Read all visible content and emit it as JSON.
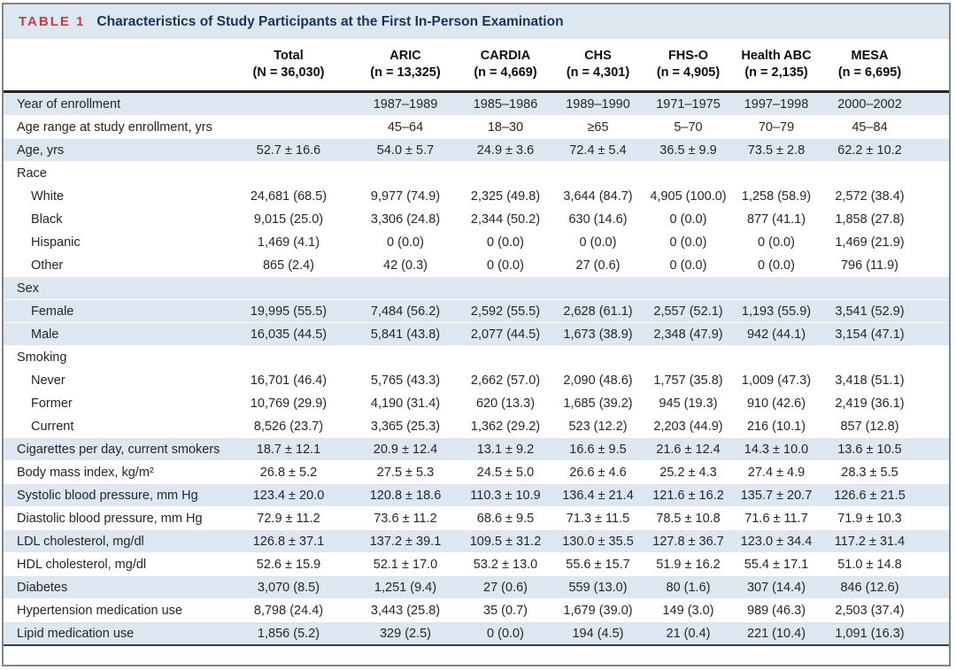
{
  "title": {
    "tag": "TABLE 1",
    "text": "Characteristics of Study Participants at the First In-Person Examination"
  },
  "columns": [
    {
      "name": "Total",
      "n": "(N = 36,030)"
    },
    {
      "name": "ARIC",
      "n": "(n = 13,325)"
    },
    {
      "name": "CARDIA",
      "n": "(n = 4,669)"
    },
    {
      "name": "CHS",
      "n": "(n = 4,301)"
    },
    {
      "name": "FHS-O",
      "n": "(n = 4,905)"
    },
    {
      "name": "Health ABC",
      "n": "(n = 2,135)"
    },
    {
      "name": "MESA",
      "n": "(n = 6,695)"
    }
  ],
  "rows": [
    {
      "label": "Year of enrollment",
      "indent": false,
      "shaded": true,
      "values": [
        "",
        "1987–1989",
        "1985–1986",
        "1989–1990",
        "1971–1975",
        "1997–1998",
        "2000–2002"
      ]
    },
    {
      "label": "Age range at study enrollment, yrs",
      "indent": false,
      "shaded": false,
      "values": [
        "",
        "45–64",
        "18–30",
        "≥65",
        "5–70",
        "70–79",
        "45–84"
      ]
    },
    {
      "label": "Age, yrs",
      "indent": false,
      "shaded": true,
      "values": [
        "52.7 ± 16.6",
        "54.0 ± 5.7",
        "24.9 ± 3.6",
        "72.4 ± 5.4",
        "36.5 ± 9.9",
        "73.5 ± 2.8",
        "62.2 ± 10.2"
      ]
    },
    {
      "label": "Race",
      "indent": false,
      "shaded": false,
      "values": [
        "",
        "",
        "",
        "",
        "",
        "",
        ""
      ]
    },
    {
      "label": "White",
      "indent": true,
      "shaded": false,
      "values": [
        "24,681 (68.5)",
        "9,977 (74.9)",
        "2,325 (49.8)",
        "3,644 (84.7)",
        "4,905 (100.0)",
        "1,258 (58.9)",
        "2,572 (38.4)"
      ]
    },
    {
      "label": "Black",
      "indent": true,
      "shaded": false,
      "values": [
        "9,015 (25.0)",
        "3,306 (24.8)",
        "2,344 (50.2)",
        "630 (14.6)",
        "0 (0.0)",
        "877 (41.1)",
        "1,858 (27.8)"
      ]
    },
    {
      "label": "Hispanic",
      "indent": true,
      "shaded": false,
      "values": [
        "1,469 (4.1)",
        "0 (0.0)",
        "0 (0.0)",
        "0 (0.0)",
        "0 (0.0)",
        "0 (0.0)",
        "1,469 (21.9)"
      ]
    },
    {
      "label": "Other",
      "indent": true,
      "shaded": false,
      "values": [
        "865 (2.4)",
        "42 (0.3)",
        "0 (0.0)",
        "27 (0.6)",
        "0 (0.0)",
        "0 (0.0)",
        "796 (11.9)"
      ]
    },
    {
      "label": "Sex",
      "indent": false,
      "shaded": true,
      "values": [
        "",
        "",
        "",
        "",
        "",
        "",
        ""
      ]
    },
    {
      "label": "Female",
      "indent": true,
      "shaded": true,
      "values": [
        "19,995 (55.5)",
        "7,484 (56.2)",
        "2,592 (55.5)",
        "2,628 (61.1)",
        "2,557 (52.1)",
        "1,193 (55.9)",
        "3,541 (52.9)"
      ]
    },
    {
      "label": "Male",
      "indent": true,
      "shaded": true,
      "values": [
        "16,035 (44.5)",
        "5,841 (43.8)",
        "2,077 (44.5)",
        "1,673 (38.9)",
        "2,348 (47.9)",
        "942 (44.1)",
        "3,154 (47.1)"
      ]
    },
    {
      "label": "Smoking",
      "indent": false,
      "shaded": false,
      "values": [
        "",
        "",
        "",
        "",
        "",
        "",
        ""
      ]
    },
    {
      "label": "Never",
      "indent": true,
      "shaded": false,
      "values": [
        "16,701 (46.4)",
        "5,765 (43.3)",
        "2,662 (57.0)",
        "2,090 (48.6)",
        "1,757 (35.8)",
        "1,009 (47.3)",
        "3,418 (51.1)"
      ]
    },
    {
      "label": "Former",
      "indent": true,
      "shaded": false,
      "values": [
        "10,769 (29.9)",
        "4,190 (31.4)",
        "620 (13.3)",
        "1,685 (39.2)",
        "945 (19.3)",
        "910 (42.6)",
        "2,419 (36.1)"
      ]
    },
    {
      "label": "Current",
      "indent": true,
      "shaded": false,
      "values": [
        "8,526 (23.7)",
        "3,365 (25.3)",
        "1,362 (29.2)",
        "523 (12.2)",
        "2,203 (44.9)",
        "216 (10.1)",
        "857 (12.8)"
      ]
    },
    {
      "label": "Cigarettes per day, current smokers",
      "indent": false,
      "shaded": true,
      "values": [
        "18.7 ± 12.1",
        "20.9 ± 12.4",
        "13.1 ± 9.2",
        "16.6 ± 9.5",
        "21.6 ± 12.4",
        "14.3 ± 10.0",
        "13.6 ± 10.5"
      ]
    },
    {
      "label": "Body mass index, kg/m²",
      "indent": false,
      "shaded": false,
      "values": [
        "26.8 ± 5.2",
        "27.5 ± 5.3",
        "24.5 ± 5.0",
        "26.6 ± 4.6",
        "25.2 ± 4.3",
        "27.4 ± 4.9",
        "28.3 ± 5.5"
      ]
    },
    {
      "label": "Systolic blood pressure, mm Hg",
      "indent": false,
      "shaded": true,
      "values": [
        "123.4 ± 20.0",
        "120.8 ± 18.6",
        "110.3 ± 10.9",
        "136.4 ± 21.4",
        "121.6 ± 16.2",
        "135.7 ± 20.7",
        "126.6 ± 21.5"
      ]
    },
    {
      "label": "Diastolic blood pressure, mm Hg",
      "indent": false,
      "shaded": false,
      "values": [
        "72.9 ± 11.2",
        "73.6 ± 11.2",
        "68.6 ± 9.5",
        "71.3 ± 11.5",
        "78.5 ± 10.8",
        "71.6 ± 11.7",
        "71.9 ± 10.3"
      ]
    },
    {
      "label": "LDL cholesterol, mg/dl",
      "indent": false,
      "shaded": true,
      "values": [
        "126.8 ± 37.1",
        "137.2 ± 39.1",
        "109.5 ± 31.2",
        "130.0 ± 35.5",
        "127.8 ± 36.7",
        "123.0 ± 34.4",
        "117.2 ± 31.4"
      ]
    },
    {
      "label": "HDL cholesterol, mg/dl",
      "indent": false,
      "shaded": false,
      "values": [
        "52.6 ± 15.9",
        "52.1 ± 17.0",
        "53.2 ± 13.0",
        "55.6 ± 15.7",
        "51.9 ± 16.2",
        "55.4 ± 17.1",
        "51.0 ± 14.8"
      ]
    },
    {
      "label": "Diabetes",
      "indent": false,
      "shaded": true,
      "values": [
        "3,070 (8.5)",
        "1,251 (9.4)",
        "27 (0.6)",
        "559 (13.0)",
        "80 (1.6)",
        "307 (14.4)",
        "846 (12.6)"
      ]
    },
    {
      "label": "Hypertension medication use",
      "indent": false,
      "shaded": false,
      "values": [
        "8,798 (24.4)",
        "3,443 (25.8)",
        "35 (0.7)",
        "1,679 (39.0)",
        "149 (3.0)",
        "989 (46.3)",
        "2,503 (37.4)"
      ]
    },
    {
      "label": "Lipid medication use",
      "indent": false,
      "shaded": true,
      "values": [
        "1,856 (5.2)",
        "329 (2.5)",
        "0 (0.0)",
        "194 (4.5)",
        "21 (0.4)",
        "221 (10.4)",
        "1,091 (16.3)"
      ]
    }
  ],
  "colors": {
    "title_bar_bg": "#dde7f0",
    "stripe_bg": "#dce7f1",
    "tag_red": "#c23b45",
    "title_navy": "#16355d",
    "header_rule": "#222222",
    "outer_border": "#7e858c"
  }
}
